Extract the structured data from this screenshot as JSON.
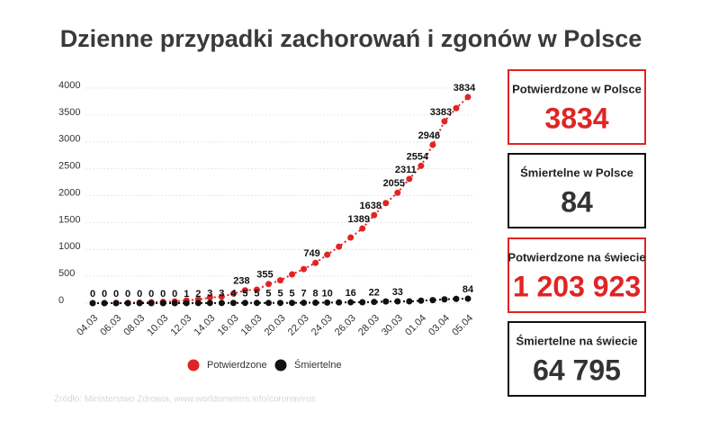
{
  "chart_data": {
    "type": "line",
    "title": "Dzienne przypadki zachorowań i zgonów w Polsce",
    "categories": [
      "04.03",
      null,
      "06.03",
      null,
      "08.03",
      null,
      "10.03",
      null,
      "12.03",
      null,
      "14.03",
      null,
      "16.03",
      null,
      "18.03",
      null,
      "20.03",
      null,
      "22.03",
      null,
      "24.03",
      null,
      "26.03",
      null,
      "28.03",
      null,
      "30.03",
      null,
      "01.04",
      null,
      "03.04",
      null,
      "05.04"
    ],
    "series": [
      {
        "name": "Potwierdzone",
        "color": "#e02424",
        "values": [
          1,
          1,
          5,
          5,
          11,
          16,
          22,
          31,
          51,
          68,
          104,
          119,
          177,
          238,
          251,
          355,
          425,
          536,
          634,
          749,
          901,
          1051,
          1221,
          1389,
          1638,
          1862,
          2055,
          2311,
          2554,
          2946,
          3383,
          3627,
          3834
        ],
        "value_labels": [
          null,
          null,
          null,
          null,
          null,
          null,
          null,
          null,
          null,
          null,
          null,
          null,
          null,
          "238",
          null,
          "355",
          null,
          null,
          null,
          "749",
          null,
          null,
          null,
          "1389",
          "1638",
          null,
          "2055",
          "2311",
          "2554",
          "2946",
          "3383",
          null,
          "3834"
        ]
      },
      {
        "name": "Śmiertelne",
        "color": "#111111",
        "values": [
          0,
          0,
          0,
          0,
          0,
          0,
          0,
          0,
          1,
          2,
          3,
          3,
          4,
          5,
          5,
          5,
          5,
          5,
          7,
          8,
          10,
          14,
          16,
          17,
          22,
          31,
          33,
          33,
          46,
          57,
          71,
          79,
          84
        ],
        "value_labels": [
          "0",
          "0",
          "0",
          "0",
          "0",
          "0",
          "0",
          "0",
          "1",
          "2",
          "3",
          "3",
          "4",
          "5",
          "5",
          "5",
          "5",
          "5",
          "7",
          "8",
          "10",
          null,
          "16",
          null,
          "22",
          null,
          "33",
          null,
          null,
          null,
          null,
          null,
          "84"
        ]
      }
    ],
    "ylim": [
      0,
      4000
    ],
    "yticks": [
      0,
      500,
      1000,
      1500,
      2000,
      2500,
      3000,
      3500,
      4000
    ],
    "grid": true,
    "legend": "bottom",
    "source": "Źródło: Ministerstwo Zdrowia, www.worldometers.info/coronavirus"
  },
  "summary": [
    {
      "label": "Potwierdzone w Polsce",
      "value": "3834",
      "color": "#e02424"
    },
    {
      "label": "Śmiertelne w Polsce",
      "value": "84",
      "color": "#333333"
    },
    {
      "label": "Potwierdzone na świecie",
      "value": "1 203 923",
      "color": "#e02424"
    },
    {
      "label": "Śmiertelne na świecie",
      "value": "64 795",
      "color": "#333333"
    }
  ]
}
